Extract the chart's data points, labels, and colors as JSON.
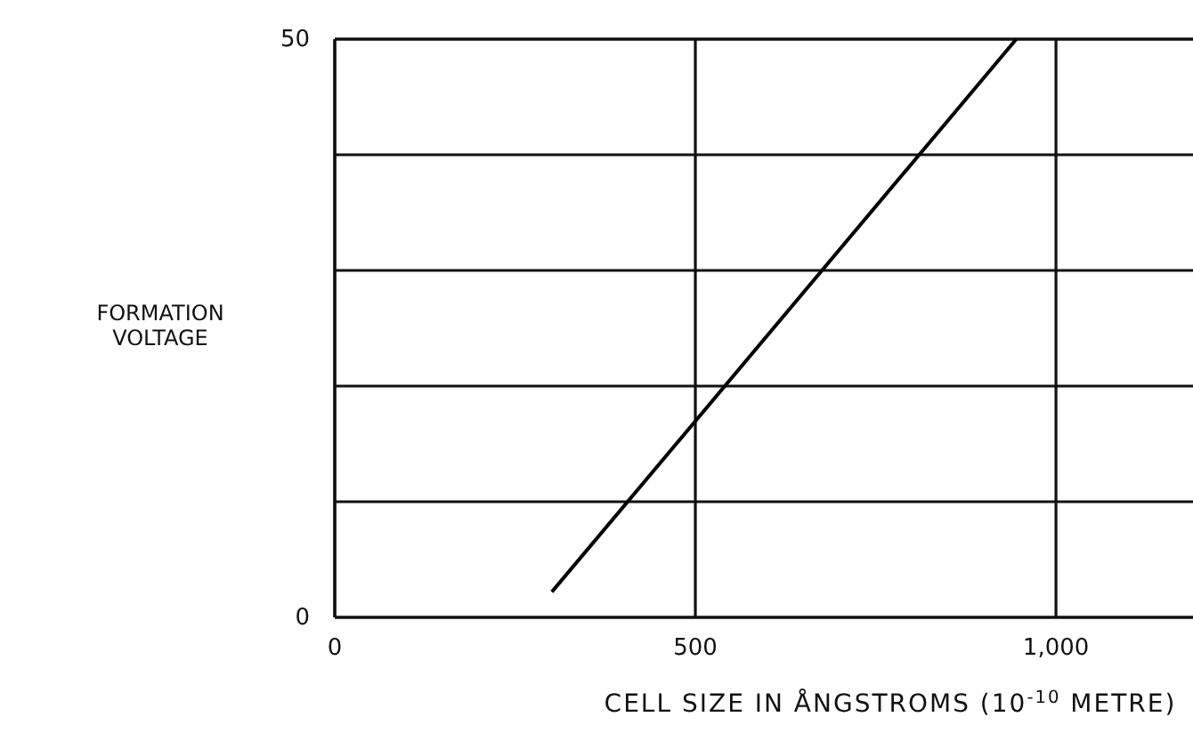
{
  "chart_data": {
    "type": "line",
    "xlabel": "CELL SIZE IN ÅNGSTROMS (10$^{-10}$ METRE)",
    "ylabel": "FORMATION VOLTAGE",
    "x": [
      301,
      945
    ],
    "series": [
      {
        "color": "#000000",
        "values": [
          2.2,
          50
        ]
      }
    ],
    "xlim": [
      0,
      1190
    ],
    "xticks": [
      0,
      500,
      {
        "value": 1000,
        "label": "1,000"
      }
    ],
    "ylim": [
      0,
      50
    ],
    "yticks": [
      0,
      {
        "value": 10,
        "label": null
      },
      {
        "value": 20,
        "label": null
      },
      {
        "value": 30,
        "label": null
      },
      {
        "value": 40,
        "label": null
      },
      50
    ],
    "grid": true,
    "marker": "none",
    "line_style": "solid"
  }
}
